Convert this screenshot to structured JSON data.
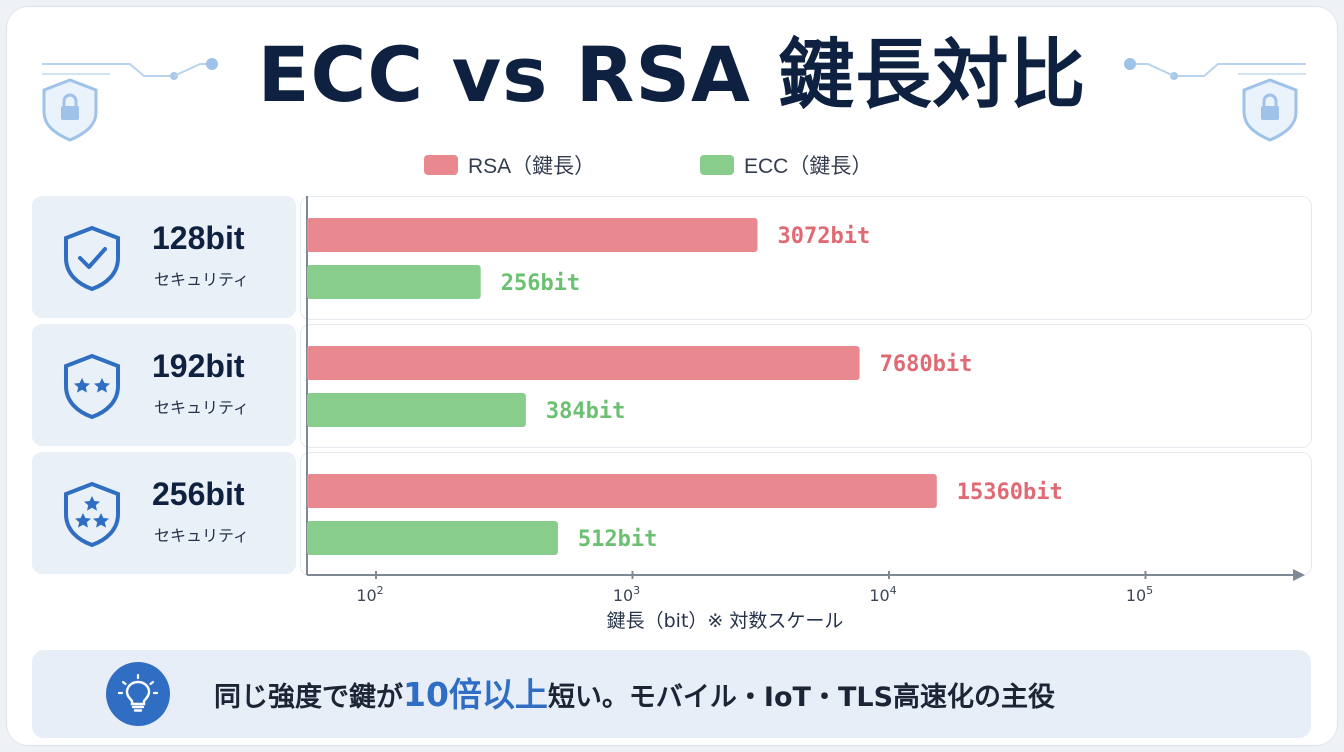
{
  "title": "ECC vs RSA 鍵長対比",
  "colors": {
    "rsa": "#ea8890",
    "ecc": "#88cd8b",
    "rsa_text": "#e06a74",
    "ecc_text": "#6cc072",
    "accent": "#2f6ec2",
    "navy": "#0e2140"
  },
  "rows": [
    {
      "level": "128bit",
      "sublabel": "セキュリティ",
      "icon": "shield-check-icon"
    },
    {
      "level": "192bit",
      "sublabel": "セキュリティ",
      "icon": "shield-two-stars-icon"
    },
    {
      "level": "256bit",
      "sublabel": "セキュリティ",
      "icon": "shield-three-stars-icon"
    }
  ],
  "chart_data": {
    "type": "bar",
    "orientation": "horizontal",
    "scale": "log",
    "categories": [
      "128bit セキュリティ",
      "192bit セキュリティ",
      "256bit セキュリティ"
    ],
    "series": [
      {
        "name": "RSA（鍵長）",
        "values": [
          3072,
          7680,
          15360
        ],
        "labels": [
          "3072bit",
          "7680bit",
          "15360bit"
        ]
      },
      {
        "name": "ECC（鍵長）",
        "values": [
          256,
          384,
          512
        ],
        "labels": [
          "256bit",
          "384bit",
          "512bit"
        ]
      }
    ],
    "xlabel": "鍵長（bit）※ 対数スケール",
    "xticks": [
      {
        "value": 100,
        "base": "10",
        "exp": "2"
      },
      {
        "value": 1000,
        "base": "10",
        "exp": "3"
      },
      {
        "value": 10000,
        "base": "10",
        "exp": "4"
      },
      {
        "value": 100000,
        "base": "10",
        "exp": "5"
      }
    ],
    "legend_position": "top-center",
    "grid": false
  },
  "note": {
    "prefix": "同じ強度で鍵が",
    "highlight": "10倍以上",
    "suffix": "短い。モバイル・IoT・TLS高速化の主役"
  }
}
